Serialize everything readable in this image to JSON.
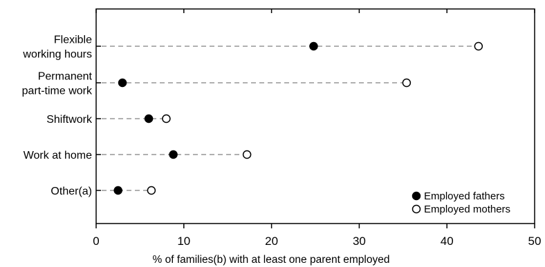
{
  "chart_data": {
    "type": "dot",
    "categories": [
      [
        "Flexible",
        "working hours"
      ],
      [
        "Permanent",
        "part-time work"
      ],
      [
        "Shiftwork"
      ],
      [
        "Work at home"
      ],
      [
        "Other(a)"
      ]
    ],
    "series": [
      {
        "name": "Employed fathers",
        "marker": "filled",
        "values": [
          24.8,
          3.0,
          6.0,
          8.8,
          2.5
        ]
      },
      {
        "name": "Employed mothers",
        "marker": "open",
        "values": [
          43.6,
          35.4,
          8.0,
          17.2,
          6.3
        ]
      }
    ],
    "xlabel": "% of families(b) with at least one parent employed",
    "xlim": [
      0,
      50
    ],
    "xticks": [
      0,
      10,
      20,
      30,
      40,
      50
    ],
    "grid": false,
    "legend_position": "bottom-right",
    "colors": {
      "marker_fill": "#000000",
      "marker_open_fill": "#ffffff",
      "connector": "#808080",
      "axis": "#000000"
    }
  }
}
